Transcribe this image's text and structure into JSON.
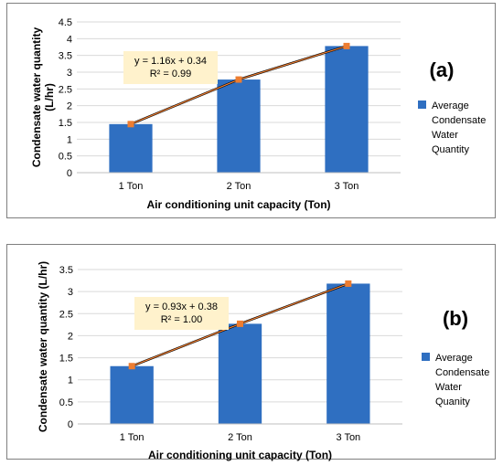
{
  "chart_data": [
    {
      "type": "bar",
      "panel_label": "(a)",
      "categories": [
        "1 Ton",
        "2 Ton",
        "3 Ton"
      ],
      "series": [
        {
          "name": "Average Condensate Water Quantity",
          "legend_lines": [
            "Average",
            "Condensate",
            "Water",
            "Quantity"
          ],
          "values": [
            1.45,
            2.78,
            3.78
          ],
          "color": "#2f6fc1"
        }
      ],
      "trendline": {
        "values": [
          1.45,
          2.78,
          3.78
        ],
        "color": "#ed7d31",
        "line_color": "#000000",
        "equation": "y = 1.16x + 0.34",
        "r2": "R² = 0.99"
      },
      "xlabel": "Air conditioning unit capacity (Ton)",
      "ylabel_lines": [
        "Condensate water quantity",
        "(L/hr)"
      ],
      "ylim": [
        0,
        4.5
      ],
      "yticks": [
        "0",
        "0.5",
        "1",
        "1.5",
        "2",
        "2.5",
        "3",
        "3.5",
        "4",
        "4.5"
      ],
      "grid": true,
      "legend_position": "right"
    },
    {
      "type": "bar",
      "panel_label": "(b)",
      "categories": [
        "1 Ton",
        "2 Ton",
        "3 Ton"
      ],
      "series": [
        {
          "name": "Average Condensate Water Quanity",
          "legend_lines": [
            "Average",
            "Condensate",
            "Water",
            "Quanity"
          ],
          "values": [
            1.31,
            2.27,
            3.18
          ],
          "color": "#2f6fc1"
        }
      ],
      "trendline": {
        "values": [
          1.31,
          2.27,
          3.18
        ],
        "color": "#ed7d31",
        "line_color": "#000000",
        "equation": "y = 0.93x + 0.38",
        "r2": "R² = 1.00"
      },
      "xlabel": "Air conditioning unit capacity (Ton)",
      "ylabel_lines": [
        "Condensate water quantity (L/hr)"
      ],
      "ylim": [
        0,
        3.5
      ],
      "yticks": [
        "0",
        "0.5",
        "1",
        "1.5",
        "2",
        "2.5",
        "3",
        "3.5"
      ],
      "grid": true,
      "legend_position": "right"
    }
  ]
}
